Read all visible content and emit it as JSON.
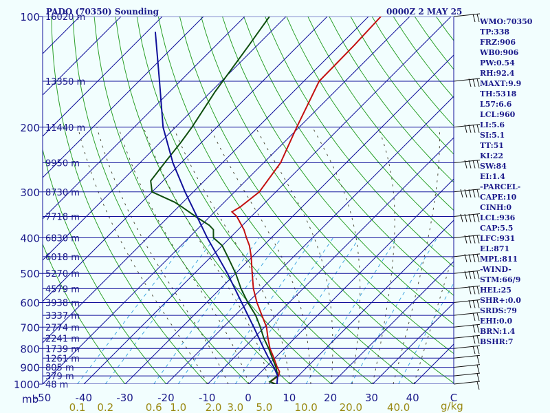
{
  "header": {
    "title": "PADO (70350) Sounding",
    "datetime": "0000Z  2 MAY 25"
  },
  "indices": [
    "WMO:70350",
    "TP:338",
    "FRZ:906",
    "WB0:906",
    "PW:0.54",
    "RH:92.4",
    "MAXT:9.9",
    "TH:5318",
    "L57:6.6",
    "LCL:960",
    "LI:5.6",
    "SI:5.1",
    "TT:51",
    "KI:22",
    "SW:84",
    "EI:1.4",
    "-PARCEL-",
    "CAPE:10",
    "CINH:0",
    "LCL:936",
    "CAP:5.5",
    "LFC:931",
    "EL:871",
    "MPL:811",
    "-WIND-",
    "STM:66/9",
    "HEL:25",
    "SHR+:0.0",
    "SRDS:79",
    "EHI:0.0",
    "BRN:1.4",
    "BSHR:7"
  ],
  "chart_data": {
    "type": "line",
    "title": "PADO (70350) Sounding",
    "skew_t": true,
    "y_scale": "log-pressure",
    "y_range_mb": [
      1000,
      100
    ],
    "x_range_c": [
      -50,
      50
    ],
    "y_unit_label": "mb",
    "x_unit_label": "C",
    "mixing_ratio_unit": "g/kg",
    "pressure_ticks": [
      100,
      200,
      300,
      400,
      500,
      600,
      700,
      800,
      900,
      1000
    ],
    "temperature_ticks": [
      -50,
      -40,
      -30,
      -20,
      -10,
      0,
      10,
      20,
      30,
      40
    ],
    "temperature_tick_labels": [
      "-50",
      "-40",
      "-30",
      "-20",
      "-10",
      "0",
      "10",
      "20",
      "30",
      "40",
      "C"
    ],
    "mixing_ratio_labels": [
      "0.1",
      "0.2",
      "0.6",
      "1.0",
      "2.0",
      "3.0",
      "5.0",
      "10.0",
      "20.0",
      "40.0"
    ],
    "height_levels": [
      {
        "p": 100,
        "label": "16020 m"
      },
      {
        "p": 150,
        "label": "13350 m"
      },
      {
        "p": 200,
        "label": "11440 m"
      },
      {
        "p": 250,
        "label": "9950 m"
      },
      {
        "p": 300,
        "label": "8730 m"
      },
      {
        "p": 350,
        "label": "7718 m"
      },
      {
        "p": 400,
        "label": "6830 m"
      },
      {
        "p": 450,
        "label": "6018 m"
      },
      {
        "p": 500,
        "label": "5270 m"
      },
      {
        "p": 550,
        "label": "4579 m"
      },
      {
        "p": 600,
        "label": "3938 m"
      },
      {
        "p": 650,
        "label": "3337 m"
      },
      {
        "p": 700,
        "label": "2774 m"
      },
      {
        "p": 750,
        "label": "2241 m"
      },
      {
        "p": 800,
        "label": "1739 m"
      },
      {
        "p": 850,
        "label": "1261 m"
      },
      {
        "p": 900,
        "label": "805 m"
      },
      {
        "p": 950,
        "label": "379 m"
      },
      {
        "p": 1000,
        "label": "48 m"
      }
    ],
    "series": [
      {
        "key": "temperature",
        "color": "#c41010",
        "points": [
          [
            1000,
            6.5
          ],
          [
            985,
            4.6
          ],
          [
            950,
            5.2
          ],
          [
            925,
            4.4
          ],
          [
            900,
            2.8
          ],
          [
            850,
            -0.2
          ],
          [
            800,
            -3.5
          ],
          [
            750,
            -6.5
          ],
          [
            700,
            -9.5
          ],
          [
            650,
            -13.5
          ],
          [
            600,
            -17.8
          ],
          [
            550,
            -22.0
          ],
          [
            500,
            -26.0
          ],
          [
            450,
            -30.3
          ],
          [
            420,
            -33.4
          ],
          [
            400,
            -36.0
          ],
          [
            380,
            -38.6
          ],
          [
            350,
            -43.5
          ],
          [
            340,
            -45.8
          ],
          [
            330,
            -45.0
          ],
          [
            300,
            -44.0
          ],
          [
            250,
            -45.9
          ],
          [
            200,
            -50.6
          ],
          [
            150,
            -56.3
          ],
          [
            120,
            -56.5
          ],
          [
            100,
            -57.0
          ]
        ]
      },
      {
        "key": "dewpoint",
        "color": "#0e4e0e",
        "points": [
          [
            1000,
            6.5
          ],
          [
            985,
            4.5
          ],
          [
            950,
            5.0
          ],
          [
            900,
            2.5
          ],
          [
            850,
            -0.6
          ],
          [
            800,
            -3.8
          ],
          [
            750,
            -7.5
          ],
          [
            700,
            -11.0
          ],
          [
            650,
            -15.0
          ],
          [
            600,
            -20.0
          ],
          [
            550,
            -25.0
          ],
          [
            500,
            -30.0
          ],
          [
            450,
            -36.0
          ],
          [
            420,
            -40.0
          ],
          [
            400,
            -44.0
          ],
          [
            380,
            -46.0
          ],
          [
            370,
            -48.0
          ],
          [
            350,
            -53.5
          ],
          [
            330,
            -59.0
          ],
          [
            320,
            -62.0
          ],
          [
            300,
            -70.0
          ],
          [
            280,
            -73.0
          ],
          [
            250,
            -74.0
          ],
          [
            220,
            -75.0
          ],
          [
            200,
            -76.0
          ],
          [
            160,
            -79.0
          ],
          [
            120,
            -82.0
          ],
          [
            100,
            -84.0
          ]
        ]
      },
      {
        "key": "parcel",
        "color": "#10109a",
        "points": [
          [
            1000,
            6.8
          ],
          [
            950,
            5.0
          ],
          [
            900,
            2.0
          ],
          [
            850,
            -1.5
          ],
          [
            800,
            -5.0
          ],
          [
            700,
            -12.6
          ],
          [
            600,
            -21.5
          ],
          [
            500,
            -32.0
          ],
          [
            400,
            -45.5
          ],
          [
            300,
            -62.0
          ],
          [
            250,
            -72.0
          ],
          [
            200,
            -83.0
          ],
          [
            150,
            -95.0
          ],
          [
            110,
            -108.0
          ]
        ]
      }
    ],
    "reference_lines": {
      "isotherms_color": "#10109a",
      "isobars_color": "#10109a",
      "dry_adiabats_color": "#2aa02a",
      "moist_adiabats_color": "#4d4d3a",
      "mixing_ratio_color": "#3fa6e0"
    },
    "wind_barbs": [
      {
        "p": 1000,
        "speed_kt": 5
      },
      {
        "p": 950,
        "speed_kt": 5
      },
      {
        "p": 900,
        "speed_kt": 10
      },
      {
        "p": 850,
        "speed_kt": 10
      },
      {
        "p": 800,
        "speed_kt": 15
      },
      {
        "p": 750,
        "speed_kt": 15
      },
      {
        "p": 700,
        "speed_kt": 20
      },
      {
        "p": 650,
        "speed_kt": 20
      },
      {
        "p": 600,
        "speed_kt": 25
      },
      {
        "p": 550,
        "speed_kt": 30
      },
      {
        "p": 500,
        "speed_kt": 35
      },
      {
        "p": 450,
        "speed_kt": 35
      },
      {
        "p": 400,
        "speed_kt": 40
      },
      {
        "p": 350,
        "speed_kt": 45
      },
      {
        "p": 300,
        "speed_kt": 45
      },
      {
        "p": 250,
        "speed_kt": 40
      },
      {
        "p": 200,
        "speed_kt": 35
      },
      {
        "p": 150,
        "speed_kt": 30
      },
      {
        "p": 100,
        "speed_kt": 20
      }
    ]
  }
}
